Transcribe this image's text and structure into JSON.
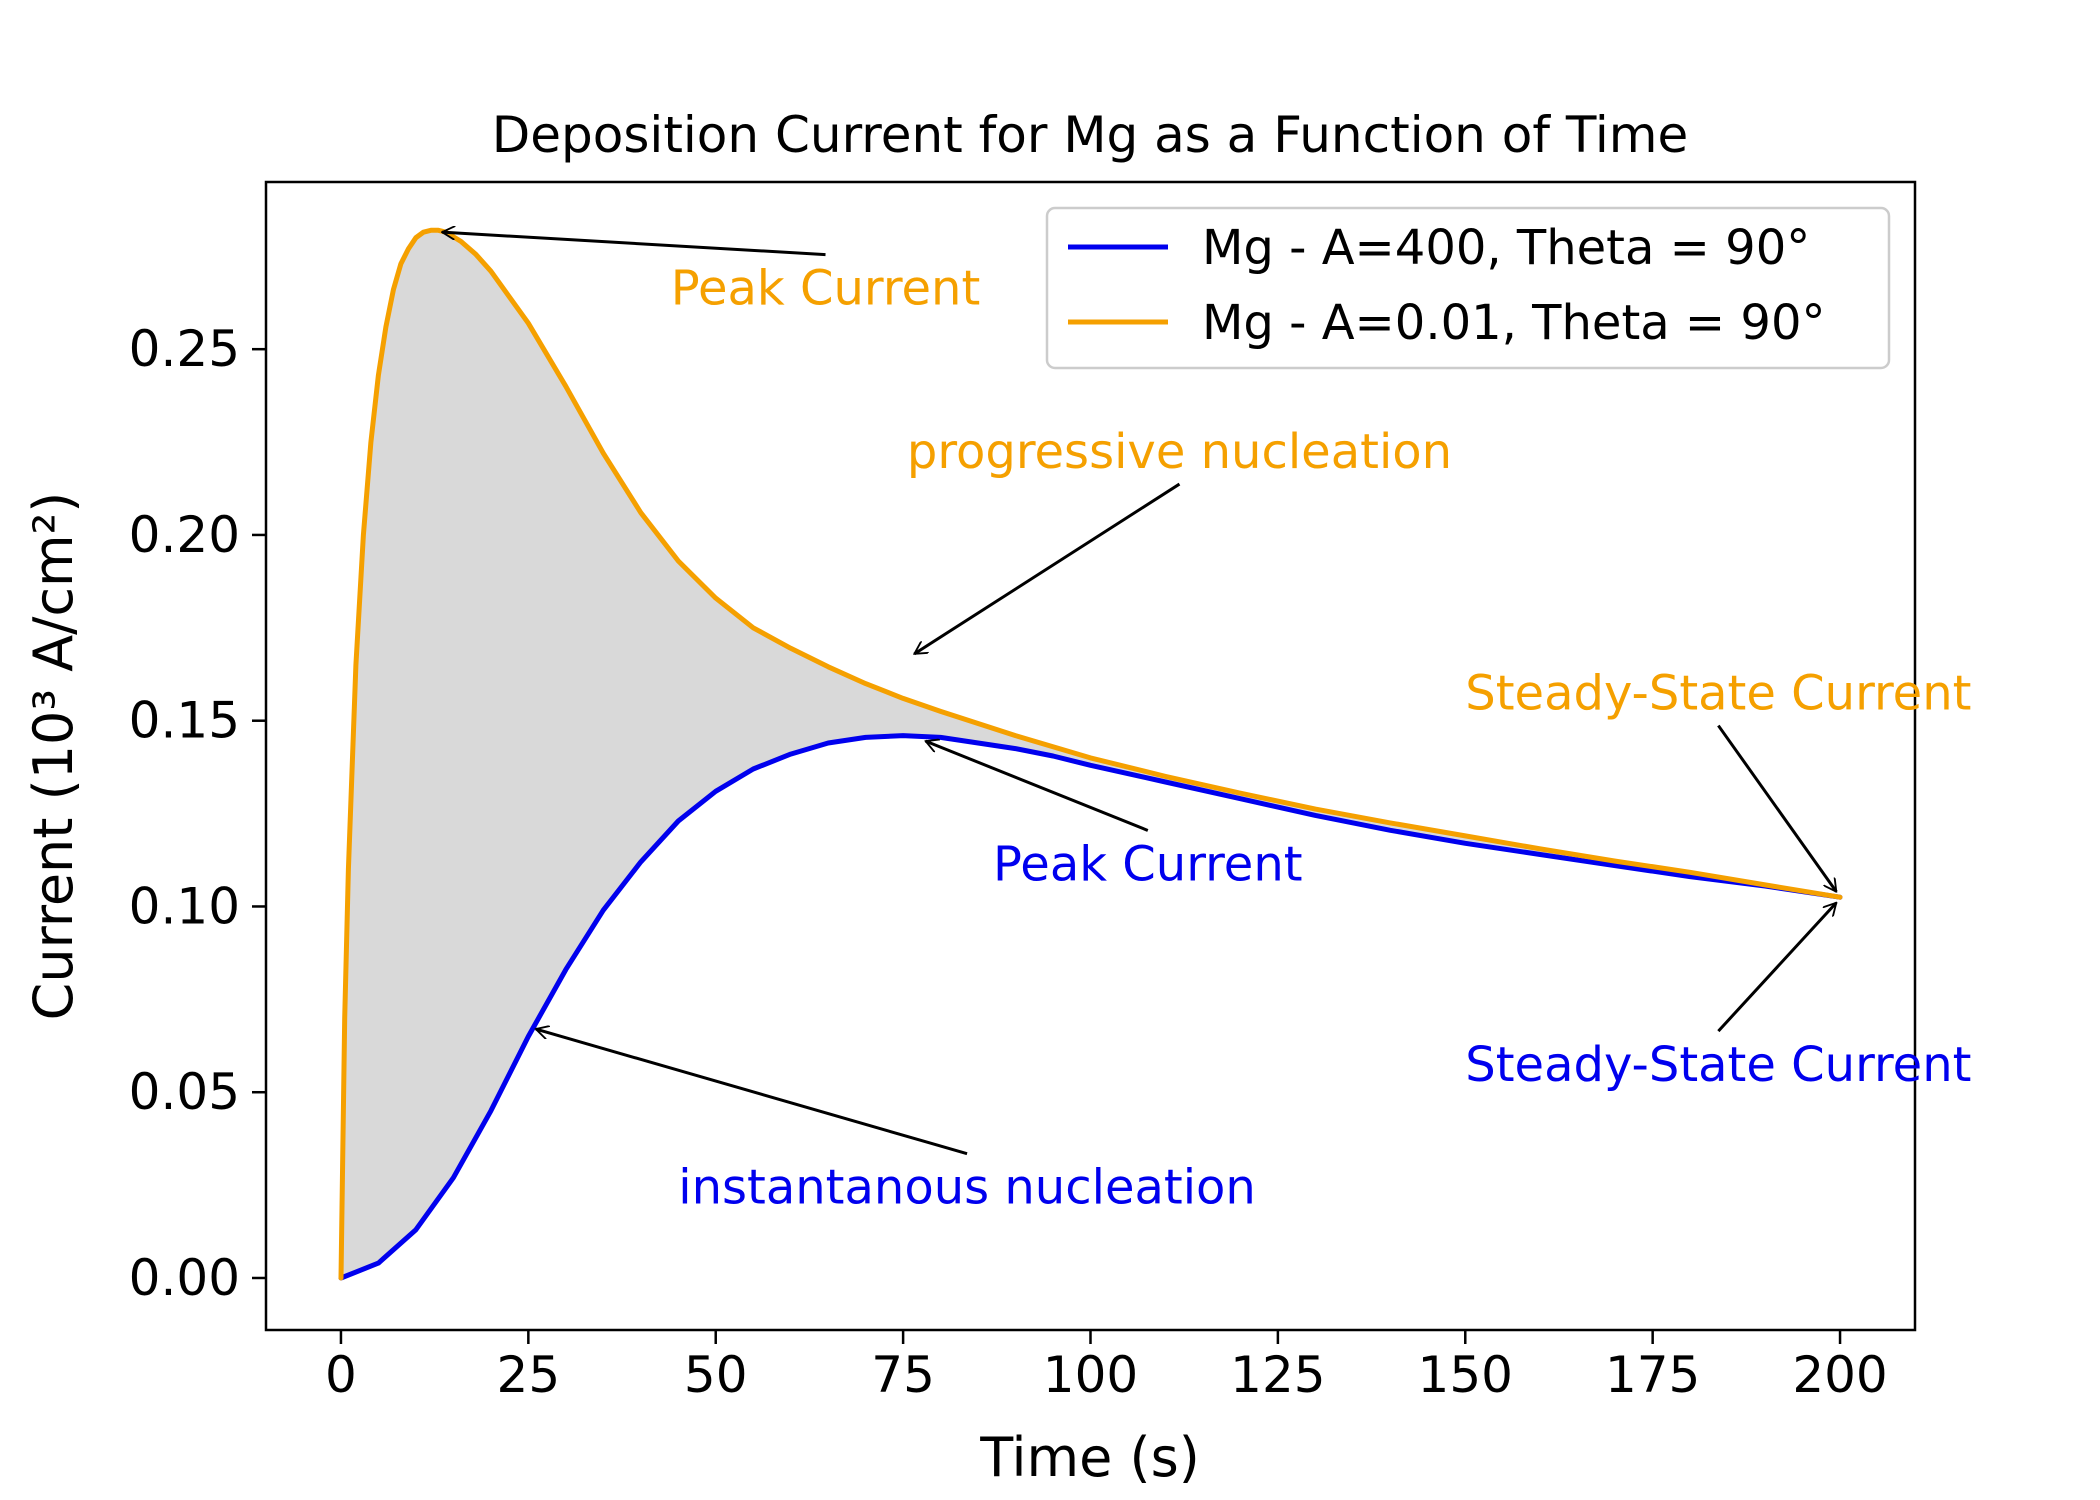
{
  "chart_data": {
    "type": "line",
    "title": "Deposition Current for Mg as a Function of Time",
    "xlabel": "Time (s)",
    "ylabel": "Current (10³ A/cm²)",
    "xlim": [
      -10,
      210
    ],
    "ylim": [
      -0.014,
      0.295
    ],
    "xticks": [
      0,
      25,
      50,
      75,
      100,
      125,
      150,
      175,
      200
    ],
    "yticks": [
      0.0,
      0.05,
      0.1,
      0.15,
      0.2,
      0.25
    ],
    "ytick_labels": [
      "0.00",
      "0.05",
      "0.10",
      "0.15",
      "0.20",
      "0.25"
    ],
    "grid": false,
    "legend_position": "upper right",
    "fill_between": {
      "color": "#d9d9d9",
      "between": [
        "Mg - A=0.01, Theta = 90°",
        "Mg - A=400, Theta = 90°"
      ]
    },
    "series": [
      {
        "name": "Mg - A=400, Theta = 90°",
        "color": "#0000ee",
        "x": [
          0,
          5,
          10,
          15,
          20,
          25,
          30,
          35,
          40,
          45,
          50,
          55,
          60,
          65,
          70,
          75,
          80,
          85,
          90,
          95,
          100,
          110,
          120,
          130,
          140,
          150,
          160,
          170,
          180,
          190,
          200
        ],
        "y": [
          0.0,
          0.004,
          0.013,
          0.027,
          0.045,
          0.065,
          0.083,
          0.099,
          0.112,
          0.123,
          0.131,
          0.137,
          0.141,
          0.144,
          0.1455,
          0.146,
          0.1455,
          0.144,
          0.1425,
          0.1405,
          0.138,
          0.1335,
          0.129,
          0.1245,
          0.1205,
          0.117,
          0.114,
          0.111,
          0.108,
          0.1055,
          0.1025
        ]
      },
      {
        "name": "Mg - A=0.01, Theta = 90°",
        "color": "#f5a000",
        "x": [
          0,
          0.5,
          1,
          2,
          3,
          4,
          5,
          6,
          7,
          8,
          9,
          10,
          11,
          12,
          13,
          14,
          16,
          18,
          20,
          25,
          30,
          35,
          40,
          45,
          50,
          55,
          60,
          65,
          70,
          75,
          80,
          90,
          100,
          110,
          120,
          130,
          140,
          150,
          160,
          170,
          180,
          190,
          200
        ],
        "y": [
          0.0,
          0.07,
          0.11,
          0.165,
          0.2,
          0.225,
          0.243,
          0.256,
          0.266,
          0.273,
          0.277,
          0.28,
          0.2815,
          0.282,
          0.282,
          0.2815,
          0.279,
          0.2755,
          0.271,
          0.257,
          0.24,
          0.222,
          0.206,
          0.193,
          0.183,
          0.175,
          0.1695,
          0.1645,
          0.16,
          0.156,
          0.1525,
          0.146,
          0.14,
          0.135,
          0.1305,
          0.1262,
          0.1225,
          0.119,
          0.1155,
          0.1122,
          0.1092,
          0.1058,
          0.1025
        ]
      }
    ],
    "annotations": [
      {
        "text": "Peak Current",
        "color": "#f5a000",
        "text_x": 44,
        "text_y": 0.262,
        "arrow_to": [
          13.5,
          0.2815
        ]
      },
      {
        "text": "progressive nucleation",
        "color": "#f5a000",
        "text_x": 75.5,
        "text_y": 0.218,
        "arrow_to": [
          76.5,
          0.168
        ]
      },
      {
        "text": "Peak Current",
        "color": "#0000ee",
        "text_x": 87,
        "text_y": 0.107,
        "arrow_to": [
          78,
          0.1445
        ]
      },
      {
        "text": "instantanous nucleation",
        "color": "#0000ee",
        "text_x": 45,
        "text_y": 0.02,
        "arrow_to": [
          26,
          0.067
        ]
      },
      {
        "text": "Steady-State Current",
        "color": "#f5a000",
        "text_x": 150,
        "text_y": 0.153,
        "arrow_to": [
          199.5,
          0.104
        ]
      },
      {
        "text": "Steady-State Current",
        "color": "#0000ee",
        "text_x": 150,
        "text_y": 0.053,
        "arrow_to": [
          199.5,
          0.101
        ]
      }
    ]
  }
}
